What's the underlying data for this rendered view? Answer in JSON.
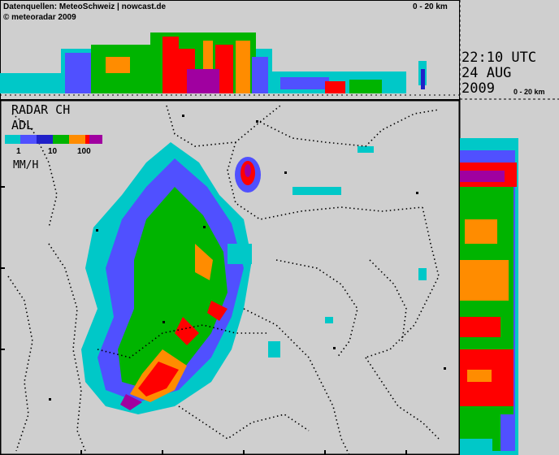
{
  "header": {
    "source": "Datenquellen: MeteoSchweiz | nowcast.de",
    "copyright": "© meteoradar 2009",
    "top_range": "0 - 20 km"
  },
  "timestamp": {
    "time": "22:10 UTC",
    "date": "24 AUG",
    "year": "2009",
    "side_range": "0 - 20 km"
  },
  "legend": {
    "title_line1": "RADAR CH",
    "title_line2": "ADL",
    "tick_1": "1",
    "tick_10": "10",
    "tick_100": "100",
    "unit": "MM/H",
    "colors": [
      "#00c8c8",
      "#5050ff",
      "#2020c8",
      "#00b400",
      "#ff8c00",
      "#ff0000",
      "#a000a0"
    ]
  }
}
